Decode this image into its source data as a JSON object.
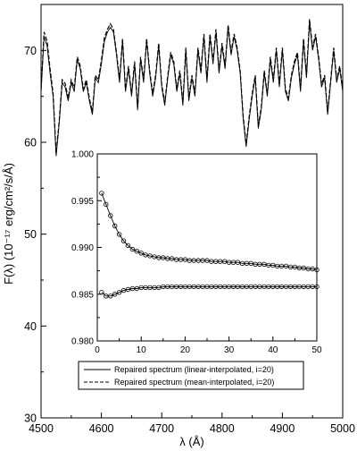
{
  "chart_data": [
    {
      "type": "line",
      "title": "",
      "xlabel": "λ (Å)",
      "ylabel": "F(λ) (10⁻¹⁷ erg/cm²/s/Å)",
      "xlim": [
        4500,
        5000
      ],
      "ylim": [
        30,
        75
      ],
      "xticks": [
        "4500",
        "4600",
        "4700",
        "4800",
        "4900",
        "5000"
      ],
      "yticks": [
        "30",
        "40",
        "50",
        "60",
        "70"
      ],
      "grid": false,
      "legend": {
        "placement": "bottom-center",
        "entries": [
          {
            "label": "Repaired spectrum (linear-interpolated, i=20)",
            "style": "solid"
          },
          {
            "label": "Repaired spectrum (mean-interpolated, i=20)",
            "style": "dashed"
          }
        ]
      },
      "series": [
        {
          "style": "solid",
          "x": [
            4500,
            4505,
            4510,
            4515,
            4520,
            4525,
            4530,
            4535,
            4540,
            4545,
            4550,
            4555,
            4560,
            4565,
            4570,
            4575,
            4580,
            4585,
            4590,
            4595,
            4600,
            4605,
            4610,
            4615,
            4620,
            4625,
            4630,
            4635,
            4640,
            4645,
            4650,
            4655,
            4660,
            4665,
            4670,
            4675,
            4680,
            4685,
            4690,
            4695,
            4700,
            4705,
            4710,
            4715,
            4720,
            4725,
            4730,
            4735,
            4740,
            4745,
            4750,
            4755,
            4760,
            4765,
            4770,
            4775,
            4780,
            4785,
            4790,
            4795,
            4800,
            4805,
            4810,
            4815,
            4820,
            4825,
            4830,
            4835,
            4840,
            4845,
            4850,
            4855,
            4860,
            4865,
            4870,
            4875,
            4880,
            4885,
            4890,
            4895,
            4900,
            4905,
            4910,
            4915,
            4920,
            4925,
            4930,
            4935,
            4940,
            4945,
            4950,
            4955,
            4960,
            4965,
            4970,
            4975,
            4980,
            4985,
            4990,
            4995,
            5000
          ],
          "y": [
            65.5,
            71.5,
            70.5,
            67.5,
            65.0,
            58.5,
            62.0,
            66.5,
            66.0,
            64.5,
            66.5,
            65.5,
            69.0,
            68.0,
            65.5,
            66.5,
            64.5,
            63.0,
            67.0,
            66.5,
            68.5,
            71.0,
            72.0,
            72.5,
            72.0,
            69.5,
            66.5,
            71.0,
            65.5,
            68.0,
            65.0,
            68.5,
            63.5,
            69.0,
            66.5,
            71.0,
            67.5,
            65.0,
            67.0,
            70.5,
            66.0,
            64.0,
            67.0,
            69.5,
            68.5,
            65.5,
            67.5,
            64.0,
            70.0,
            64.5,
            67.0,
            65.0,
            70.0,
            67.5,
            71.5,
            66.5,
            71.5,
            68.5,
            72.0,
            67.5,
            70.5,
            68.0,
            72.5,
            69.5,
            71.5,
            70.0,
            67.5,
            62.5,
            59.5,
            62.5,
            65.0,
            67.0,
            61.5,
            63.5,
            67.5,
            65.0,
            69.0,
            66.5,
            70.0,
            66.0,
            70.0,
            65.5,
            64.5,
            67.0,
            68.5,
            69.5,
            65.5,
            71.0,
            67.0,
            73.0,
            70.0,
            71.5,
            69.0,
            66.0,
            67.0,
            63.0,
            66.5,
            70.0,
            66.5,
            68.0,
            65.5
          ]
        },
        {
          "style": "dashed",
          "x": [
            4500,
            4505,
            4510,
            4515,
            4520,
            4525,
            4530,
            4535,
            4540,
            4545,
            4550,
            4555,
            4560,
            4565,
            4570,
            4575,
            4580,
            4585,
            4590,
            4595,
            4600,
            4605,
            4610,
            4615,
            4620,
            4625,
            4630,
            4635,
            4640,
            4645,
            4650,
            4655,
            4660,
            4665,
            4670,
            4675,
            4680,
            4685,
            4690,
            4695,
            4700,
            4705,
            4710,
            4715,
            4720,
            4725,
            4730,
            4735,
            4740,
            4745,
            4750,
            4755,
            4760,
            4765,
            4770,
            4775,
            4780,
            4785,
            4790,
            4795,
            4800,
            4805,
            4810,
            4815,
            4820,
            4825,
            4830,
            4835,
            4840,
            4845,
            4850,
            4855,
            4860,
            4865,
            4870,
            4875,
            4880,
            4885,
            4890,
            4895,
            4900,
            4905,
            4910,
            4915,
            4920,
            4925,
            4930,
            4935,
            4940,
            4945,
            4950,
            4955,
            4960,
            4965,
            4970,
            4975,
            4980,
            4985,
            4990,
            4995,
            5000
          ],
          "y": [
            65.7,
            72.0,
            71.0,
            68.0,
            65.3,
            58.8,
            62.3,
            66.8,
            66.4,
            64.8,
            66.8,
            65.9,
            69.3,
            68.3,
            65.8,
            66.8,
            64.8,
            63.3,
            67.3,
            66.8,
            68.9,
            71.4,
            72.3,
            72.9,
            72.3,
            69.8,
            66.8,
            71.3,
            65.8,
            68.3,
            65.3,
            68.8,
            63.8,
            69.3,
            66.8,
            71.3,
            67.8,
            65.3,
            67.3,
            70.8,
            66.3,
            64.3,
            67.3,
            69.8,
            68.8,
            65.8,
            67.8,
            64.3,
            70.3,
            64.8,
            67.3,
            65.3,
            70.3,
            67.8,
            71.8,
            66.8,
            71.8,
            68.8,
            72.3,
            67.8,
            70.8,
            68.3,
            72.8,
            69.8,
            71.8,
            70.3,
            67.8,
            62.8,
            59.8,
            62.8,
            65.3,
            67.3,
            61.8,
            63.8,
            67.8,
            65.3,
            69.3,
            66.8,
            70.3,
            66.3,
            70.3,
            65.8,
            64.8,
            67.3,
            68.8,
            69.8,
            65.8,
            71.3,
            67.3,
            73.4,
            70.3,
            71.8,
            69.3,
            66.3,
            67.3,
            63.3,
            66.8,
            70.3,
            66.8,
            68.3,
            65.8
          ]
        }
      ]
    },
    {
      "type": "line",
      "title": "",
      "xlabel": "",
      "ylabel": "",
      "xlim": [
        0,
        50
      ],
      "ylim": [
        0.98,
        1.0
      ],
      "xticks": [
        "0",
        "10",
        "20",
        "30",
        "40",
        "50"
      ],
      "yticks": [
        "0.980",
        "0.985",
        "0.990",
        "0.995",
        "1.000"
      ],
      "grid": false,
      "series": [
        {
          "style": "solid-with-circles",
          "x": [
            1,
            2,
            3,
            4,
            5,
            6,
            7,
            8,
            9,
            10,
            11,
            12,
            13,
            14,
            15,
            16,
            17,
            18,
            19,
            20,
            21,
            22,
            23,
            24,
            25,
            26,
            27,
            28,
            29,
            30,
            31,
            32,
            33,
            34,
            35,
            36,
            37,
            38,
            39,
            40,
            41,
            42,
            43,
            44,
            45,
            46,
            47,
            48,
            49,
            50
          ],
          "y": [
            0.9958,
            0.9946,
            0.9934,
            0.9923,
            0.9914,
            0.9907,
            0.9902,
            0.9898,
            0.9896,
            0.9894,
            0.9892,
            0.9891,
            0.989,
            0.9889,
            0.9889,
            0.9888,
            0.9888,
            0.9887,
            0.9887,
            0.9887,
            0.9886,
            0.9886,
            0.9886,
            0.9886,
            0.9886,
            0.9885,
            0.9885,
            0.9885,
            0.9885,
            0.9884,
            0.9884,
            0.9884,
            0.9883,
            0.9883,
            0.9883,
            0.9882,
            0.9882,
            0.9882,
            0.9881,
            0.9881,
            0.988,
            0.988,
            0.988,
            0.9879,
            0.9879,
            0.9878,
            0.9878,
            0.9877,
            0.9877,
            0.9876
          ]
        },
        {
          "style": "solid-with-circles",
          "x": [
            1,
            2,
            3,
            4,
            5,
            6,
            7,
            8,
            9,
            10,
            11,
            12,
            13,
            14,
            15,
            16,
            17,
            18,
            19,
            20,
            21,
            22,
            23,
            24,
            25,
            26,
            27,
            28,
            29,
            30,
            31,
            32,
            33,
            34,
            35,
            36,
            37,
            38,
            39,
            40,
            41,
            42,
            43,
            44,
            45,
            46,
            47,
            48,
            49,
            50
          ],
          "y": [
            0.9852,
            0.9848,
            0.9848,
            0.985,
            0.9852,
            0.9854,
            0.9855,
            0.9856,
            0.9856,
            0.9857,
            0.9857,
            0.9857,
            0.9857,
            0.9857,
            0.9858,
            0.9858,
            0.9858,
            0.9858,
            0.9858,
            0.9858,
            0.9858,
            0.9858,
            0.9858,
            0.9858,
            0.9858,
            0.9858,
            0.9858,
            0.9858,
            0.9858,
            0.9858,
            0.9858,
            0.9858,
            0.9858,
            0.9858,
            0.9858,
            0.9858,
            0.9858,
            0.9858,
            0.9858,
            0.9858,
            0.9858,
            0.9858,
            0.9858,
            0.9858,
            0.9858,
            0.9858,
            0.9858,
            0.9858,
            0.9858,
            0.9858
          ]
        }
      ]
    }
  ]
}
